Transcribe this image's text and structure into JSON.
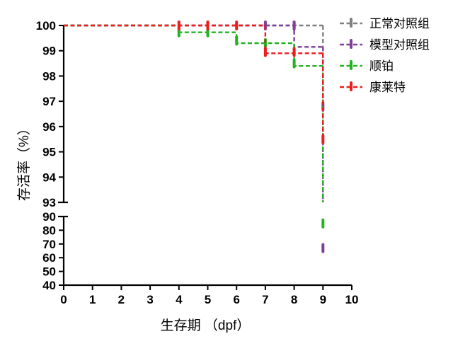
{
  "chart_data": {
    "type": "line",
    "subtype": "kaplan-meier-step",
    "xlabel": "生存期 （dpf）",
    "ylabel": "存活率（%）",
    "xlim": [
      0,
      10
    ],
    "x_ticks": [
      "0",
      "1",
      "2",
      "3",
      "4",
      "5",
      "6",
      "7",
      "8",
      "9",
      "10"
    ],
    "y_axis_broken": true,
    "y_upper_range": [
      93,
      100
    ],
    "y_upper_ticks": [
      "93",
      "94",
      "95",
      "96",
      "97",
      "98",
      "99",
      "100"
    ],
    "y_lower_range": [
      40,
      90
    ],
    "y_lower_ticks": [
      "40",
      "50",
      "60",
      "70",
      "80",
      "90"
    ],
    "grid": false,
    "legend_position": "top-right",
    "series": [
      {
        "name": "正常对照组",
        "color": "#808080",
        "steps": [
          [
            0,
            100
          ],
          [
            9,
            100
          ]
        ],
        "censor_marks": [
          [
            8,
            100
          ]
        ],
        "drop_to": 93,
        "drop_censor": []
      },
      {
        "name": "模型对照组",
        "color": "#7f3f98",
        "steps": [
          [
            0,
            100
          ],
          [
            8,
            99.15
          ],
          [
            9,
            99.15
          ]
        ],
        "censor_marks": [
          [
            7,
            100
          ],
          [
            8,
            100
          ]
        ],
        "drop_to": 67,
        "drop_censor": [
          96.8,
          67
        ]
      },
      {
        "name": "顺铂",
        "color": "#22b322",
        "steps": [
          [
            0,
            100
          ],
          [
            4,
            99.73
          ],
          [
            6,
            99.3
          ],
          [
            8,
            98.4
          ],
          [
            9,
            98.4
          ]
        ],
        "censor_marks": [
          [
            4,
            99.73
          ],
          [
            5,
            99.73
          ],
          [
            6,
            99.4
          ],
          [
            7,
            99.3
          ],
          [
            8,
            98.5
          ]
        ],
        "drop_to": 85,
        "drop_censor": [
          85
        ]
      },
      {
        "name": "康莱特",
        "color": "#ee1c1c",
        "steps": [
          [
            0,
            100
          ],
          [
            7,
            98.9
          ],
          [
            9,
            98.9
          ]
        ],
        "censor_marks": [
          [
            4,
            100
          ],
          [
            5,
            100
          ],
          [
            6,
            100
          ],
          [
            7,
            98.95
          ],
          [
            8,
            98.95
          ]
        ],
        "drop_to": 95.5,
        "drop_censor": [
          95.5
        ]
      }
    ]
  }
}
